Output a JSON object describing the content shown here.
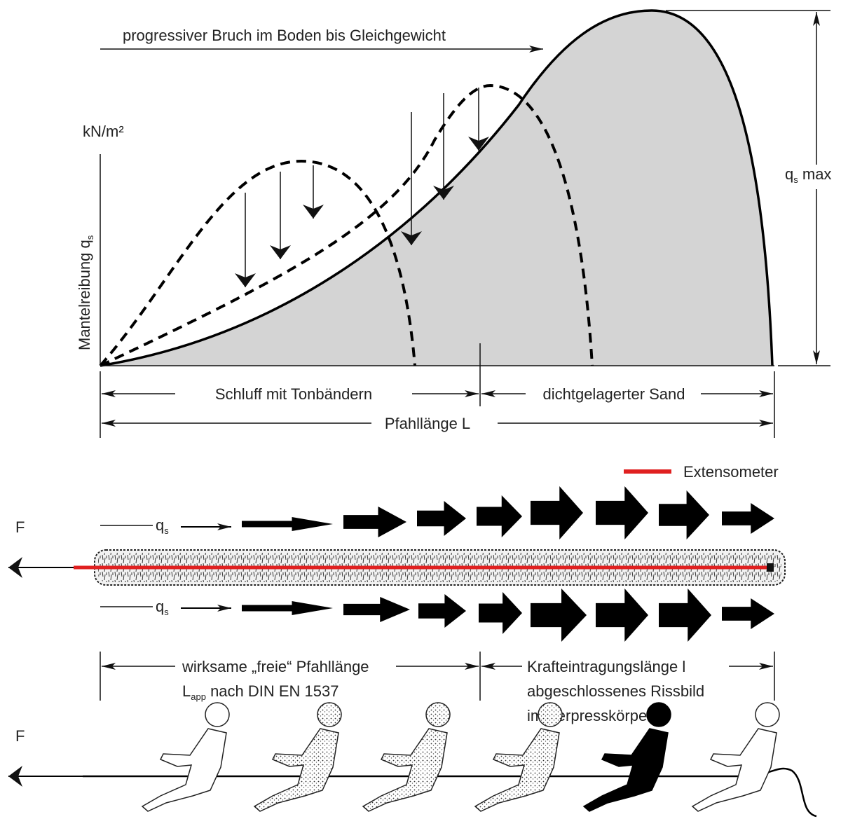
{
  "chart": {
    "title": "progressiver Bruch im Boden bis Gleichgewicht",
    "y_unit": "kN/m²",
    "y_label": {
      "text": "Mantelreibung q",
      "sub": "s"
    },
    "peak_label": {
      "text": "q",
      "sub": "s",
      "suffix": " max"
    },
    "segments": [
      "Schluff mit Tonbändern",
      "dichtgelagerter Sand"
    ],
    "total": "Pfahllänge L"
  },
  "anchor": {
    "legend": "Extensometer",
    "force": "F",
    "shear_top": {
      "text": "q",
      "sub": "s"
    },
    "shear_bottom": {
      "text": "q",
      "sub": "s"
    },
    "free_length": {
      "line1": "wirksame „freie“ Pfahllänge",
      "line2": {
        "text": "L",
        "sub": "app",
        "suffix": " nach DIN EN 1537"
      }
    },
    "bond_length": [
      "Krafteintragungslänge l",
      "abgeschlossenes Rissbild",
      "im Verpresskörper"
    ]
  },
  "tug": {
    "force": "F"
  }
}
